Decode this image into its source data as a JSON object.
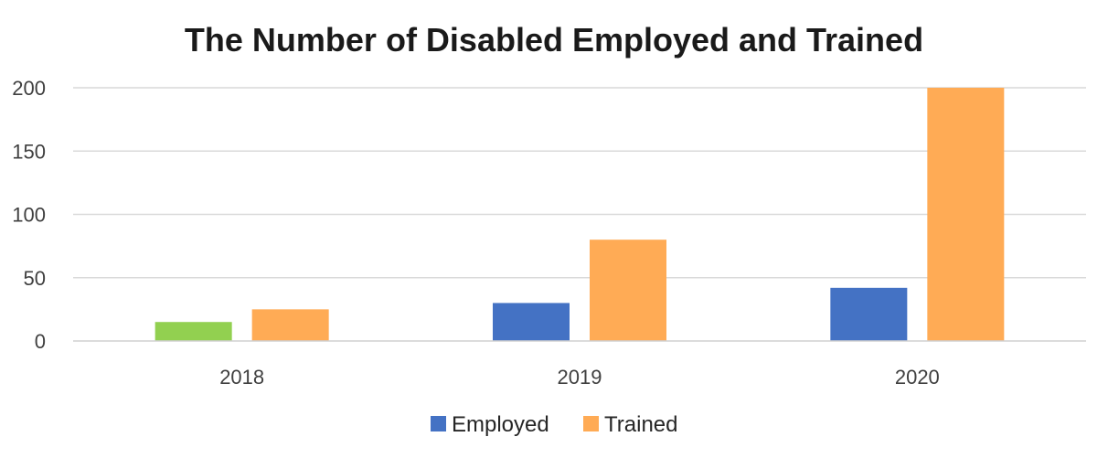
{
  "chart_data": {
    "type": "bar",
    "title": "The Number of Disabled Employed and Trained",
    "categories": [
      "2018",
      "2019",
      "2020"
    ],
    "series": [
      {
        "name": "Employed",
        "values": [
          15,
          30,
          42
        ],
        "color": "#4472c4",
        "point_colors": [
          "#92d050",
          "#4472c4",
          "#4472c4"
        ]
      },
      {
        "name": "Trained",
        "values": [
          25,
          80,
          200
        ],
        "color": "#ffab55",
        "point_colors": [
          "#ffab55",
          "#ffab55",
          "#ffab55"
        ]
      }
    ],
    "ylim": [
      0,
      200
    ],
    "yticks": [
      "0",
      "50",
      "100",
      "150",
      "200"
    ],
    "grid": true,
    "legend_position": "bottom"
  }
}
